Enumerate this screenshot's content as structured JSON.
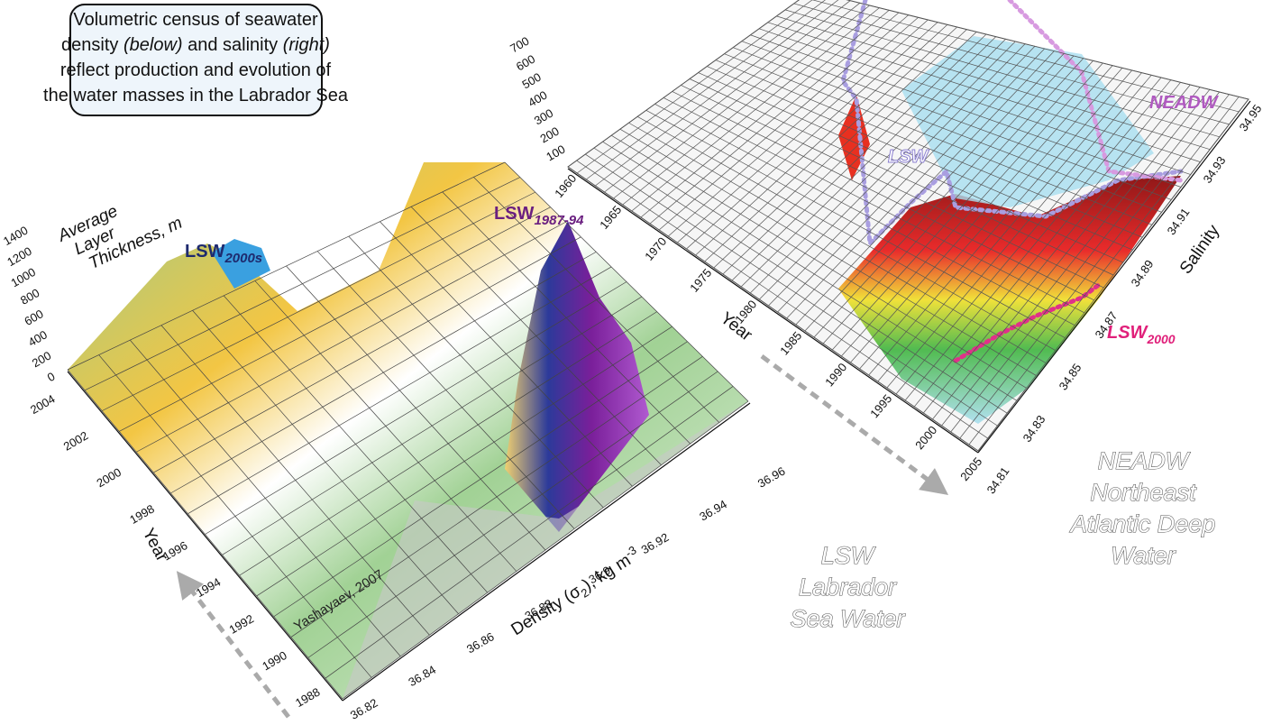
{
  "callout": {
    "line1": "Volumetric census of seawater",
    "line2": [
      "density ",
      "(below)",
      " and salinity ",
      "(right)"
    ],
    "line3": "reflect production and evolution of",
    "line4": "the water masses in the Labrador Sea"
  },
  "left_chart": {
    "z_axis_title": [
      "Average",
      "Layer",
      "Thickness, m"
    ],
    "z_ticks": [
      "0",
      "200",
      "400",
      "600",
      "800",
      "1000",
      "1200",
      "1400"
    ],
    "year_ticks": [
      "2004",
      "2002",
      "2000",
      "1998",
      "1996",
      "1994",
      "1992",
      "1990",
      "1988"
    ],
    "year_label": "Year",
    "density_ticks": [
      "36.82",
      "36.84",
      "36.86",
      "36.88",
      "36.9",
      "36.92",
      "36.94",
      "36.96"
    ],
    "density_label": [
      "Density (σ",
      "2",
      "), kg m",
      "-3"
    ],
    "annotations": {
      "lsw_2000s": [
        "LSW",
        "2000s"
      ],
      "lsw_1987_94": [
        "LSW",
        "1987-94"
      ]
    },
    "credit": "Yashayaev, 2007"
  },
  "right_chart": {
    "z_ticks": [
      "100",
      "200",
      "300",
      "400",
      "500",
      "600",
      "700"
    ],
    "year_ticks": [
      "1960",
      "1965",
      "1970",
      "1975",
      "1980",
      "1985",
      "1990",
      "1995",
      "2000",
      "2005"
    ],
    "year_label": "Year",
    "salinity_ticks": [
      "34.81",
      "34.83",
      "34.85",
      "34.87",
      "34.89",
      "34.91",
      "34.93",
      "34.95"
    ],
    "salinity_label": "Salinity",
    "annotations": {
      "lsw": "LSW",
      "neadw": "NEADW",
      "lsw_2000": [
        "LSW",
        "2000"
      ]
    }
  },
  "legend": {
    "lsw": [
      "LSW",
      "Labrador",
      "Sea Water"
    ],
    "neadw": [
      "NEADW",
      "Northeast",
      "Atlantic Deep",
      "Water"
    ]
  }
}
